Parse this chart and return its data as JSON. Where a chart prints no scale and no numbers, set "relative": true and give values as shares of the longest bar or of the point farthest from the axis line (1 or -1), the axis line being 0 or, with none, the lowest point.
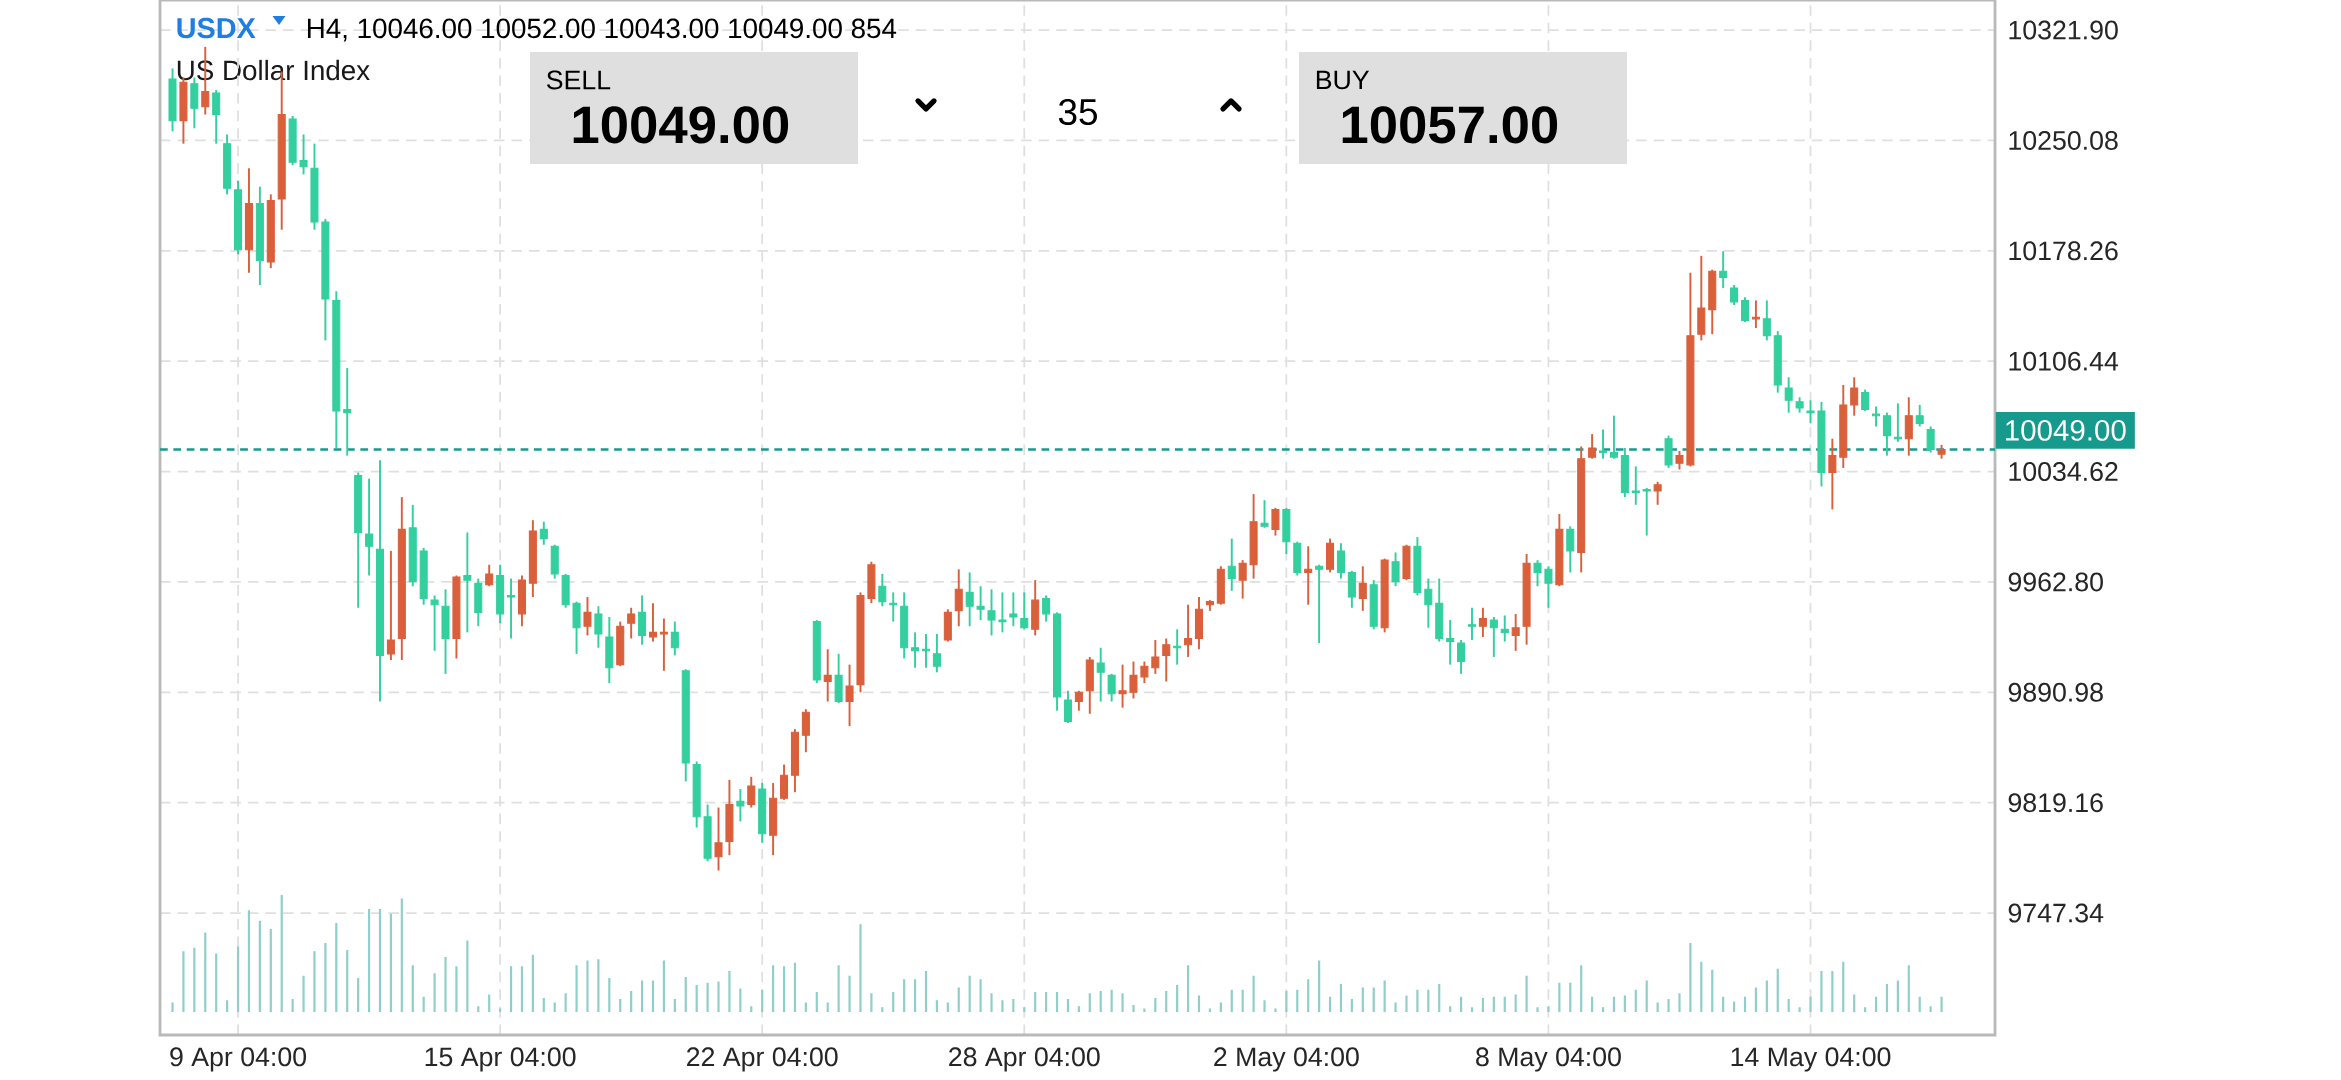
{
  "chart_data": [
    {
      "type": "candlestick",
      "title": "USDX",
      "subtitle": "US Dollar Index",
      "annotations": [
        "H4, 10046.00 10052.00 10043.00 10049.00 854",
        "SELL",
        "10049.00",
        "35",
        "BUY",
        "10057.00"
      ],
      "categories": [
        null,
        null,
        null,
        null,
        null,
        null,
        "9 Apr 04:00",
        null,
        null,
        null,
        null,
        null,
        null,
        null,
        null,
        null,
        null,
        null,
        null,
        null,
        null,
        null,
        null,
        null,
        null,
        null,
        null,
        null,
        null,
        null,
        "15 Apr 04:00",
        null,
        null,
        null,
        null,
        null,
        null,
        null,
        null,
        null,
        null,
        null,
        null,
        null,
        null,
        null,
        null,
        null,
        null,
        null,
        null,
        null,
        null,
        null,
        "22 Apr 04:00",
        null,
        null,
        null,
        null,
        null,
        null,
        null,
        null,
        null,
        null,
        null,
        null,
        null,
        null,
        null,
        null,
        null,
        null,
        null,
        null,
        null,
        null,
        null,
        "28 Apr 04:00",
        null,
        null,
        null,
        null,
        null,
        null,
        null,
        null,
        null,
        null,
        null,
        null,
        null,
        null,
        null,
        null,
        null,
        null,
        null,
        null,
        null,
        null,
        null,
        "2 May 04:00",
        null,
        null,
        null,
        null,
        null,
        null,
        null,
        null,
        null,
        null,
        null,
        null,
        null,
        null,
        null,
        null,
        null,
        null,
        null,
        null,
        null,
        null,
        null,
        "8 May 04:00",
        null,
        null,
        null,
        null,
        null,
        null,
        null,
        null,
        null,
        null,
        null,
        null,
        null,
        null,
        null,
        null,
        null,
        null,
        null,
        null,
        null,
        null,
        null,
        "14 May 04:00",
        null,
        null,
        null,
        null,
        null,
        null,
        null,
        null,
        null,
        null,
        null,
        null
      ],
      "ohlc": [
        [
          10290,
          10297,
          10256,
          10263
        ],
        [
          10263,
          10291,
          10248,
          10288
        ],
        [
          10287,
          10291,
          10258,
          10271
        ],
        [
          10272,
          10311,
          10267,
          10282
        ],
        [
          10281,
          10283,
          10248,
          10267
        ],
        [
          10248,
          10254,
          10215,
          10219
        ],
        [
          10218,
          10224,
          10176,
          10179
        ],
        [
          10179,
          10232,
          10164,
          10209
        ],
        [
          10209,
          10220,
          10156,
          10172
        ],
        [
          10171,
          10215,
          10167,
          10211
        ],
        [
          10212,
          10295,
          10192,
          10267
        ],
        [
          10264,
          10266,
          10234,
          10236
        ],
        [
          10237,
          10254,
          10228,
          10233
        ],
        [
          10232,
          10248,
          10192,
          10197
        ],
        [
          10197,
          10199,
          10120,
          10147
        ],
        [
          10146,
          10152,
          10050,
          10074
        ],
        [
          10075,
          10102,
          10045,
          10073
        ],
        [
          10032,
          10034,
          9946,
          9995
        ],
        [
          9994,
          10030,
          9967,
          9986
        ],
        [
          9984,
          10042,
          9885,
          9915
        ],
        [
          9916,
          9983,
          9912,
          9925
        ],
        [
          9926,
          10018,
          9912,
          9997
        ],
        [
          9998,
          10013,
          9960,
          9963
        ],
        [
          9983,
          9985,
          9948,
          9952
        ],
        [
          9951,
          9954,
          9918,
          9948
        ],
        [
          9947,
          9958,
          9903,
          9926
        ],
        [
          9926,
          9967,
          9913,
          9966
        ],
        [
          9967,
          9995,
          9930,
          9964
        ],
        [
          9962,
          9965,
          9934,
          9943
        ],
        [
          9961,
          9974,
          9960,
          9968
        ],
        [
          9967,
          9974,
          9936,
          9942
        ],
        [
          9954,
          9965,
          9926,
          9953
        ],
        [
          9942,
          9967,
          9934,
          9964
        ],
        [
          9962,
          10003,
          9953,
          9996
        ],
        [
          9997,
          10002,
          9987,
          9991
        ],
        [
          9986,
          9987,
          9965,
          9968
        ],
        [
          9967,
          9968,
          9946,
          9948
        ],
        [
          9949,
          9950,
          9916,
          9933
        ],
        [
          9934,
          9953,
          9928,
          9943
        ],
        [
          9942,
          9947,
          9920,
          9929
        ],
        [
          9927,
          9940,
          9897,
          9907
        ],
        [
          9909,
          9937,
          9908,
          9934
        ],
        [
          9936,
          9946,
          9926,
          9942
        ],
        [
          9943,
          9954,
          9922,
          9928
        ],
        [
          9927,
          9949,
          9924,
          9930
        ],
        [
          9929,
          9939,
          9905,
          9930
        ],
        [
          9930,
          9937,
          9915,
          9920
        ],
        [
          9905,
          9906,
          9833,
          9845
        ],
        [
          9844,
          9846,
          9803,
          9810
        ],
        [
          9810,
          9818,
          9781,
          9783
        ],
        [
          9784,
          9816,
          9775,
          9793
        ],
        [
          9794,
          9834,
          9785,
          9818
        ],
        [
          9820,
          9828,
          9807,
          9817
        ],
        [
          9818,
          9836,
          9816,
          9830
        ],
        [
          9828,
          9832,
          9793,
          9799
        ],
        [
          9798,
          9832,
          9785,
          9822
        ],
        [
          9822,
          9844,
          9821,
          9837
        ],
        [
          9837,
          9867,
          9826,
          9865
        ],
        [
          9863,
          9880,
          9852,
          9878
        ],
        [
          9937,
          9938,
          9897,
          9899
        ],
        [
          9898,
          9919,
          9885,
          9902
        ],
        [
          9902,
          9916,
          9884,
          9885
        ],
        [
          9885,
          9909,
          9869,
          9895
        ],
        [
          9896,
          9956,
          9891,
          9954
        ],
        [
          9952,
          9976,
          9949,
          9974
        ],
        [
          9960,
          9968,
          9947,
          9950
        ],
        [
          9949,
          9956,
          9937,
          9948
        ],
        [
          9947,
          9956,
          9913,
          9920
        ],
        [
          9920,
          9930,
          9907,
          9918
        ],
        [
          9919,
          9929,
          9907,
          9918
        ],
        [
          9916,
          9929,
          9904,
          9908
        ],
        [
          9925,
          9945,
          9924,
          9943
        ],
        [
          9944,
          9971,
          9934,
          9958
        ],
        [
          9956,
          9969,
          9934,
          9947
        ],
        [
          9947,
          9960,
          9938,
          9945
        ],
        [
          9944,
          9958,
          9928,
          9938
        ],
        [
          9938,
          9956,
          9930,
          9937
        ],
        [
          9942,
          9956,
          9934,
          9940
        ],
        [
          9939,
          9956,
          9932,
          9933
        ],
        [
          9932,
          9964,
          9928,
          9951
        ],
        [
          9952,
          9954,
          9937,
          9942
        ],
        [
          9942,
          9943,
          9879,
          9888
        ],
        [
          9886,
          9892,
          9871,
          9872
        ],
        [
          9885,
          9892,
          9879,
          9891
        ],
        [
          9892,
          9914,
          9877,
          9912
        ],
        [
          9910,
          9920,
          9885,
          9904
        ],
        [
          9902,
          9903,
          9885,
          9890
        ],
        [
          9890,
          9909,
          9881,
          9892
        ],
        [
          9891,
          9911,
          9887,
          9902
        ],
        [
          9901,
          9911,
          9897,
          9908
        ],
        [
          9907,
          9925,
          9903,
          9914
        ],
        [
          9915,
          9926,
          9898,
          9922
        ],
        [
          9921,
          9932,
          9909,
          9920
        ],
        [
          9922,
          9948,
          9914,
          9926
        ],
        [
          9926,
          9953,
          9919,
          9945
        ],
        [
          9948,
          9951,
          9944,
          9950
        ],
        [
          9949,
          9973,
          9948,
          9971
        ],
        [
          9973,
          9991,
          9957,
          9965
        ],
        [
          9964,
          9977,
          9952,
          9975
        ],
        [
          9974,
          10020,
          9965,
          10002
        ],
        [
          10001,
          10016,
          9998,
          9999
        ],
        [
          9997,
          10011,
          9993,
          10010
        ],
        [
          10010,
          10011,
          9981,
          9989
        ],
        [
          9988,
          9989,
          9967,
          9969
        ],
        [
          9969,
          9986,
          9948,
          9971
        ],
        [
          9973,
          9974,
          9923,
          9971
        ],
        [
          9971,
          9991,
          9969,
          9988
        ],
        [
          9983,
          9988,
          9965,
          9969
        ],
        [
          9969,
          9970,
          9946,
          9953
        ],
        [
          9952,
          9973,
          9944,
          9962
        ],
        [
          9961,
          9964,
          9932,
          9934
        ],
        [
          9933,
          9978,
          9930,
          9977
        ],
        [
          9976,
          9982,
          9960,
          9963
        ],
        [
          9965,
          9987,
          9964,
          9986
        ],
        [
          9986,
          9992,
          9954,
          9956
        ],
        [
          9958,
          9965,
          9933,
          9948
        ],
        [
          9949,
          9965,
          9924,
          9926
        ],
        [
          9926,
          9938,
          9909,
          9924
        ],
        [
          9923,
          9925,
          9903,
          9911
        ],
        [
          9935,
          9946,
          9925,
          9934
        ],
        [
          9934,
          9946,
          9927,
          9939
        ],
        [
          9938,
          9940,
          9914,
          9933
        ],
        [
          9932,
          9941,
          9924,
          9930
        ],
        [
          9928,
          9942,
          9918,
          9933
        ],
        [
          9934,
          9981,
          9922,
          9975
        ],
        [
          9975,
          9977,
          9960,
          9969
        ],
        [
          9971,
          9973,
          9946,
          9962
        ],
        [
          9961,
          10007,
          9960,
          9997
        ],
        [
          9997,
          9999,
          9969,
          9983
        ],
        [
          9982,
          10051,
          9969,
          10043
        ],
        [
          10044,
          10059,
          10043,
          10050
        ],
        [
          10048,
          10062,
          10043,
          10047
        ],
        [
          10047,
          10071,
          10043,
          10044
        ],
        [
          10045,
          10050,
          10018,
          10021
        ],
        [
          10022,
          10038,
          10013,
          10021
        ],
        [
          10023,
          10024,
          9993,
          10022
        ],
        [
          10022,
          10028,
          10013,
          10026
        ],
        [
          10056,
          10058,
          10037,
          10039
        ],
        [
          10040,
          10048,
          10036,
          10045
        ],
        [
          10039,
          10164,
          10038,
          10123
        ],
        [
          10124,
          10175,
          10120,
          10141
        ],
        [
          10140,
          10166,
          10124,
          10165
        ],
        [
          10165,
          10178,
          10154,
          10161
        ],
        [
          10154,
          10156,
          10143,
          10145
        ],
        [
          10146,
          10148,
          10132,
          10133
        ],
        [
          10134,
          10146,
          10128,
          10135
        ],
        [
          10134,
          10146,
          10120,
          10123
        ],
        [
          10123,
          10126,
          10086,
          10091
        ],
        [
          10089,
          10096,
          10073,
          10081
        ],
        [
          10080,
          10083,
          10073,
          10076
        ],
        [
          10074,
          10081,
          10066,
          10073
        ],
        [
          10074,
          10080,
          10025,
          10034
        ],
        [
          10034,
          10056,
          10010,
          10045
        ],
        [
          10044,
          10091,
          10037,
          10078
        ],
        [
          10078,
          10096,
          10071,
          10089
        ],
        [
          10086,
          10088,
          10074,
          10075
        ],
        [
          10072,
          10077,
          10064,
          10071
        ],
        [
          10071,
          10073,
          10045,
          10058
        ],
        [
          10057,
          10079,
          10054,
          10056
        ],
        [
          10056,
          10083,
          10045,
          10071
        ],
        [
          10071,
          10078,
          10064,
          10066
        ],
        [
          10062,
          10064,
          10047,
          10049
        ],
        [
          10046,
          10052,
          10043,
          10049
        ]
      ],
      "colors": [
        "#33cf9e",
        "#d9603b",
        "#33cf9e",
        "#d9603b",
        "#33cf9e",
        "#33cf9e",
        "#33cf9e",
        "#d9603b",
        "#33cf9e",
        "#d9603b",
        "#d9603b",
        "#33cf9e",
        "#33cf9e",
        "#33cf9e",
        "#33cf9e",
        "#33cf9e",
        "#33cf9e",
        "#33cf9e",
        "#33cf9e",
        "#33cf9e",
        "#d9603b",
        "#d9603b",
        "#33cf9e",
        "#33cf9e",
        "#33cf9e",
        "#33cf9e",
        "#d9603b",
        "#33cf9e",
        "#33cf9e",
        "#d9603b",
        "#33cf9e",
        "#33cf9e",
        "#d9603b",
        "#d9603b",
        "#33cf9e",
        "#33cf9e",
        "#33cf9e",
        "#33cf9e",
        "#d9603b",
        "#33cf9e",
        "#33cf9e",
        "#d9603b",
        "#d9603b",
        "#33cf9e",
        "#d9603b",
        "#d9603b",
        "#33cf9e",
        "#33cf9e",
        "#33cf9e",
        "#33cf9e",
        "#d9603b",
        "#d9603b",
        "#33cf9e",
        "#d9603b",
        "#33cf9e",
        "#d9603b",
        "#d9603b",
        "#d9603b",
        "#d9603b",
        "#33cf9e",
        "#d9603b",
        "#33cf9e",
        "#d9603b",
        "#d9603b",
        "#d9603b",
        "#33cf9e",
        "#33cf9e",
        "#33cf9e",
        "#33cf9e",
        "#33cf9e",
        "#33cf9e",
        "#d9603b",
        "#d9603b",
        "#33cf9e",
        "#33cf9e",
        "#33cf9e",
        "#33cf9e",
        "#33cf9e",
        "#33cf9e",
        "#d9603b",
        "#33cf9e",
        "#33cf9e",
        "#33cf9e",
        "#d9603b",
        "#d9603b",
        "#33cf9e",
        "#33cf9e",
        "#d9603b",
        "#d9603b",
        "#d9603b",
        "#d9603b",
        "#d9603b",
        "#33cf9e",
        "#d9603b",
        "#d9603b",
        "#d9603b",
        "#d9603b",
        "#33cf9e",
        "#d9603b",
        "#d9603b",
        "#33cf9e",
        "#d9603b",
        "#33cf9e",
        "#33cf9e",
        "#d9603b",
        "#33cf9e",
        "#d9603b",
        "#33cf9e",
        "#33cf9e",
        "#d9603b",
        "#33cf9e",
        "#d9603b",
        "#33cf9e",
        "#d9603b",
        "#33cf9e",
        "#33cf9e",
        "#33cf9e",
        "#33cf9e",
        "#33cf9e",
        "#33cf9e",
        "#d9603b",
        "#33cf9e",
        "#33cf9e",
        "#d9603b",
        "#d9603b",
        "#33cf9e",
        "#33cf9e",
        "#d9603b",
        "#33cf9e",
        "#d9603b",
        "#d9603b",
        "#33cf9e",
        "#33cf9e",
        "#33cf9e",
        "#33cf9e",
        "#33cf9e",
        "#d9603b",
        "#33cf9e",
        "#d9603b",
        "#d9603b",
        "#d9603b",
        "#d9603b",
        "#33cf9e",
        "#33cf9e",
        "#33cf9e",
        "#d9603b",
        "#33cf9e",
        "#33cf9e",
        "#33cf9e",
        "#33cf9e",
        "#33cf9e",
        "#33cf9e",
        "#d9603b",
        "#d9603b",
        "#d9603b",
        "#33cf9e",
        "#33cf9e",
        "#33cf9e",
        "#33cf9e",
        "#d9603b",
        "#33cf9e",
        "#33cf9e",
        "#d9603b"
      ],
      "ylim": [
        9668,
        10341.5
      ],
      "yticks": [
        {
          "value": 9747.34,
          "label": "9747.34"
        },
        {
          "value": 9819.16,
          "label": "9819.16"
        },
        {
          "value": 9890.98,
          "label": "9890.98"
        },
        {
          "value": 9962.8,
          "label": "9962.80"
        },
        {
          "value": 10034.62,
          "label": "10034.62"
        },
        {
          "value": 10106.44,
          "label": "10106.44"
        },
        {
          "value": 10178.26,
          "label": "10178.26"
        },
        {
          "value": 10250.08,
          "label": "10250.08"
        },
        {
          "value": 10321.9,
          "label": "10321.90"
        }
      ],
      "grid": true,
      "ref_lines": [
        {
          "axis": "y",
          "value": 10049,
          "label": "10049.00",
          "color": "#179a8e",
          "line_style": "dashed"
        }
      ]
    },
    {
      "type": "bar",
      "relative": true,
      "color": "#8fcfc9",
      "categories": [
        null,
        null,
        null,
        null,
        null,
        null,
        null,
        null,
        null,
        null,
        null,
        null,
        null,
        null,
        null,
        null,
        null,
        null,
        null,
        null,
        null,
        null,
        null,
        null,
        null,
        null,
        null,
        null,
        null,
        null,
        null,
        null,
        null,
        null,
        null,
        null,
        null,
        null,
        null,
        null,
        null,
        null,
        null,
        null,
        null,
        null,
        null,
        null,
        null,
        null,
        null,
        null,
        null,
        null,
        null,
        null,
        null,
        null,
        null,
        null,
        null,
        null,
        null,
        null,
        null,
        null,
        null,
        null,
        null,
        null,
        null,
        null,
        null,
        null,
        null,
        null,
        null,
        null,
        null,
        null,
        null,
        null,
        null,
        null,
        null,
        null,
        null,
        null,
        null,
        null,
        null,
        null,
        null,
        null,
        null,
        null,
        null,
        null,
        null,
        null,
        null,
        null,
        null,
        null,
        null,
        null,
        null,
        null,
        null,
        null,
        null,
        null,
        null,
        null,
        null,
        null,
        null,
        null,
        null,
        null,
        null,
        null,
        null,
        null,
        null,
        null,
        null,
        null,
        null,
        null,
        null,
        null,
        null,
        null,
        null,
        null,
        null,
        null,
        null,
        null,
        null,
        null,
        null,
        null,
        null,
        null,
        null,
        null,
        null,
        null,
        null,
        null,
        null,
        null,
        null,
        null,
        null,
        null,
        null,
        null,
        null,
        null,
        null
      ],
      "values": [
        0.08,
        0.52,
        0.55,
        0.68,
        0.5,
        0.1,
        0.56,
        0.87,
        0.78,
        0.71,
        1,
        0.11,
        0.31,
        0.52,
        0.59,
        0.76,
        0.53,
        0.29,
        0.88,
        0.88,
        0.84,
        0.97,
        0.4,
        0.13,
        0.33,
        0.47,
        0.39,
        0.61,
        0.05,
        0.15,
        0.03,
        0.39,
        0.39,
        0.49,
        0.12,
        0.08,
        0.16,
        0.4,
        0.44,
        0.45,
        0.29,
        0.11,
        0.18,
        0.27,
        0.27,
        0.44,
        0.11,
        0.3,
        0.23,
        0.25,
        0.26,
        0.35,
        0.2,
        0.05,
        0.19,
        0.4,
        0.39,
        0.42,
        0.08,
        0.17,
        0.08,
        0.4,
        0.31,
        0.75,
        0.16,
        0.04,
        0.17,
        0.28,
        0.28,
        0.35,
        0.1,
        0.08,
        0.21,
        0.31,
        0.28,
        0.16,
        0.1,
        0.11,
        0.04,
        0.17,
        0.17,
        0.17,
        0.11,
        0.05,
        0.16,
        0.18,
        0.19,
        0.16,
        0.06,
        0.03,
        0.12,
        0.18,
        0.23,
        0.4,
        0.14,
        0.03,
        0.08,
        0.19,
        0.19,
        0.31,
        0.1,
        0.03,
        0.18,
        0.19,
        0.28,
        0.44,
        0.13,
        0.24,
        0.11,
        0.21,
        0.21,
        0.27,
        0.08,
        0.14,
        0.19,
        0.19,
        0.24,
        0.05,
        0.13,
        0.04,
        0.12,
        0.13,
        0.13,
        0.15,
        0.31,
        0.04,
        0.05,
        0.25,
        0.25,
        0.4,
        0.13,
        0.04,
        0.13,
        0.14,
        0.19,
        0.27,
        0.08,
        0.11,
        0.16,
        0.59,
        0.43,
        0.36,
        0.13,
        0.09,
        0.13,
        0.21,
        0.27,
        0.37,
        0.11,
        0.04,
        0.13,
        0.35,
        0.35,
        0.43,
        0.15,
        0.04,
        0.13,
        0.24,
        0.27,
        0.4,
        0.13,
        0.05,
        0.13
      ]
    }
  ]
}
